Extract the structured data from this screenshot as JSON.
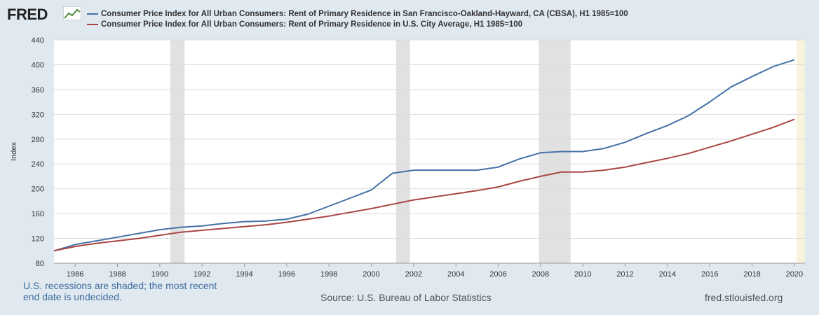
{
  "header": {
    "logo_text": "FRED",
    "logo_icon": "fred-chart-icon"
  },
  "chart_data": {
    "type": "line",
    "ylabel": "Index",
    "ylim": [
      80,
      440
    ],
    "yticks": [
      80,
      120,
      160,
      200,
      240,
      280,
      320,
      360,
      400,
      440
    ],
    "xticks": [
      "1986",
      "1988",
      "1990",
      "1992",
      "1994",
      "1996",
      "1998",
      "2000",
      "2002",
      "2004",
      "2006",
      "2008",
      "2010",
      "2012",
      "2014",
      "2016",
      "2018",
      "2020"
    ],
    "xrange": [
      1985.0,
      2020.5
    ],
    "grid": true,
    "legend_position": "top",
    "recessions": [
      [
        1990.5,
        1991.17
      ],
      [
        2001.17,
        2001.83
      ],
      [
        2007.92,
        2009.42
      ]
    ],
    "undecided_period": [
      2020.1,
      2020.5
    ],
    "series": [
      {
        "name": "Consumer Price Index for All Urban Consumers: Rent of Primary Residence in San Francisco-Oakland-Hayward, CA (CBSA), H1 1985=100",
        "color": "#4572a7",
        "x": [
          1985,
          1986,
          1987,
          1988,
          1989,
          1990,
          1991,
          1992,
          1993,
          1994,
          1995,
          1996,
          1997,
          1998,
          1999,
          2000,
          2001,
          2002,
          2003,
          2004,
          2005,
          2006,
          2007,
          2008,
          2009,
          2010,
          2011,
          2012,
          2013,
          2014,
          2015,
          2016,
          2017,
          2018,
          2019,
          2020
        ],
        "values": [
          100,
          110,
          116,
          122,
          128,
          134,
          138,
          140,
          144,
          147,
          148,
          151,
          159,
          172,
          185,
          198,
          225,
          230,
          230,
          230,
          230,
          235,
          248,
          258,
          260,
          260,
          265,
          275,
          289,
          302,
          318,
          340,
          364,
          381,
          397,
          408
        ]
      },
      {
        "name": "Consumer Price Index for All Urban Consumers: Rent of Primary Residence in U.S. City Average, H1 1985=100",
        "color": "#aa4643",
        "x": [
          1985,
          1986,
          1987,
          1988,
          1989,
          1990,
          1991,
          1992,
          1993,
          1994,
          1995,
          1996,
          1997,
          1998,
          1999,
          2000,
          2001,
          2002,
          2003,
          2004,
          2005,
          2006,
          2007,
          2008,
          2009,
          2010,
          2011,
          2012,
          2013,
          2014,
          2015,
          2016,
          2017,
          2018,
          2019,
          2020
        ],
        "values": [
          100,
          107,
          112,
          116,
          120,
          125,
          130,
          133,
          136,
          139,
          142,
          146,
          151,
          156,
          162,
          168,
          175,
          182,
          187,
          192,
          197,
          203,
          212,
          220,
          227,
          227,
          230,
          235,
          242,
          249,
          257,
          267,
          277,
          288,
          299,
          312
        ]
      }
    ]
  },
  "footer": {
    "recession_note": "U.S. recessions are shaded; the most recent end date is undecided.",
    "source": "Source: U.S. Bureau of Labor Statistics",
    "site": "fred.stlouisfed.org"
  }
}
